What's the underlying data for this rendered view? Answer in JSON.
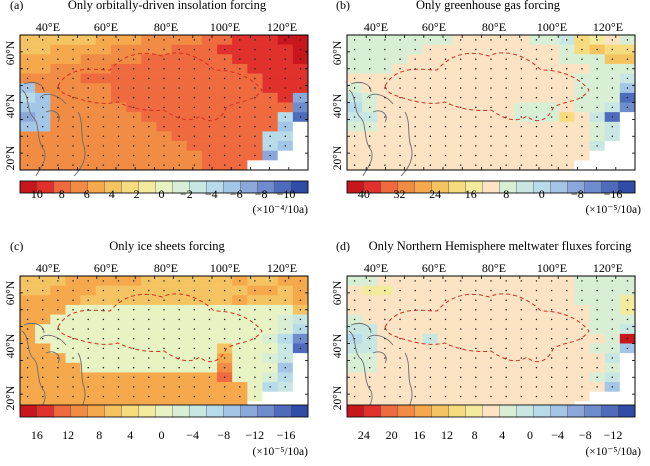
{
  "panels": [
    {
      "label": "(a)",
      "title": "Only orbitally-driven insolation forcing",
      "lon_labels": [
        "40°E",
        "60°E",
        "80°E",
        "100°E",
        "120°E"
      ],
      "lat_labels": [
        "60°N",
        "40°N",
        "20°N"
      ],
      "colorbar_ticks": [
        "10",
        "8",
        "6",
        "4",
        "2",
        "0",
        "−2",
        "−4",
        "−6",
        "−8",
        "−10"
      ],
      "unit": "(×10⁻⁴/10a)",
      "colors": [
        "#c8161d",
        "#e0312c",
        "#ef6a3e",
        "#f08c44",
        "#f6a94c",
        "#f5c462",
        "#f6dc7e",
        "#f4eb9e",
        "#e8f3c3",
        "#d8efd6",
        "#c9e7e2",
        "#b8dbe9",
        "#a3c6e6",
        "#8aa9da",
        "#6f8ccd",
        "#4f6cbc",
        "#2f4da7"
      ],
      "grid": [
        "FFFFFEEEDDDDCCBBBAA",
        "FFEEEEDDDDCCCBBBBBA",
        "EEEEDDDDCCCCCCBBBBA",
        "EEDDDDCCCCCCCCCBBBB",
        "DDDDCCCCCCCCCCCCBBB",
        "MDDDDDCCCCCCCCCCBBB",
        "LMDDDDCCCCCCCCCCCBN",
        "MMDDDDDCCCCCCCCCCCO",
        "NMDDDDDDCCCCCCCCCLP",
        "MMDDDDDDDCCCCCCCCM.",
        "DDDDDDDDDDCCCCCCLL.",
        "DDDDDDDDDDDCCCCCLM.",
        "DDDDDDDDDDDDCCCCN..",
        "DDDDDDDDDDDDCCC...."
      ]
    },
    {
      "label": "(b)",
      "title": "Only greenhouse gas forcing",
      "lon_labels": [
        "40°E",
        "60°E",
        "80°E",
        "100°E",
        "120°E"
      ],
      "lat_labels": [
        "60°N",
        "40°N",
        "20°N"
      ],
      "colorbar_ticks": [
        "40",
        "32",
        "24",
        "16",
        "8",
        "0",
        "−8",
        "−16"
      ],
      "unit": "(×10⁻⁵/10a)",
      "colors": [
        "#c8161d",
        "#e0312c",
        "#ef6a3e",
        "#f08c44",
        "#f6a94c",
        "#f5c462",
        "#f6dc7e",
        "#f4eb9e",
        "#fbe3c4",
        "#d8efd6",
        "#c9e7e2",
        "#b8dbe9",
        "#a3c6e6",
        "#8aa9da",
        "#6f8ccd",
        "#4f6cbc",
        "#2f4da7"
      ],
      "grid": [
        "JJJJJJJIIIIIJJKGHIJ",
        "JJJJJIIIIIIIIIJGFGG",
        "JJJJIIIIIIIIIIJJJFF",
        "JJJIIIIIIIIIIIIIJJJ",
        "IIIIIIIIIIIIIIIJJJK",
        "JIIIIIIIIIIIIIIJJJM",
        "KJIIIIIIIIIIIIIJJJP",
        "LJIIIIIIIIIJJJIJJKO",
        "KKIIIIIIIIIJJJGIKP.",
        "JJIIIIIIIIIIIIIIJK.",
        "IIIIIIIIIIIIIIIIJK.",
        "IIIIIIIIIIIIIIIIK..",
        "IIIIIIIIIIIIIIII...",
        "IIIIIIIIIIIIIII...."
      ]
    },
    {
      "label": "(c)",
      "title": "Only ice sheets forcing",
      "lon_labels": [
        "40°E",
        "60°E",
        "80°E",
        "100°E",
        "120°E"
      ],
      "lat_labels": [
        "60°N",
        "40°N",
        "20°N"
      ],
      "colorbar_ticks": [
        "16",
        "12",
        "8",
        "4",
        "0",
        "−4",
        "−8",
        "−12",
        "−16"
      ],
      "unit": "(×10⁻⁵/10a)",
      "colors": [
        "#c8161d",
        "#e0312c",
        "#ef6a3e",
        "#f08c44",
        "#f6a94c",
        "#f5c462",
        "#f6dc7e",
        "#f4eb9e",
        "#e8f3c3",
        "#d8efd6",
        "#c9e7e2",
        "#b8dbe9",
        "#a3c6e6",
        "#8aa9da",
        "#6f8ccd",
        "#4f6cbc",
        "#2f4da7"
      ],
      "grid": [
        "FFFEEEEEFFFFFFEFFEE",
        "FFEEEFFFFFFFFFFEEFE",
        "EEEEFFFFFFFFFFEFFFE",
        "EEEIIIIIIIIIIIIIIIF",
        "EEIIIIIIIIIIIIIIIJK",
        "EIIIIIIIIIIIIIIIIJL",
        "EIIIIIIIIIIIIIIIJLO",
        "EEIIIIIIIIIIIFIIIKP",
        "EEEIIIIIIIIIIEIIJK.",
        "EEEEIIIIIIIIIDIIIM.",
        "EEEEEEEEEEEEECIIJL.",
        "EEEEEEEEEEEEEEEILK.",
        "EEEEEEEEEEEEEEEI...",
        "EEEEEEEEEEEEEEE...."
      ]
    },
    {
      "label": "(d)",
      "title": "Only Northern Hemisphere meltwater fluxes forcing",
      "lon_labels": [
        "40°E",
        "60°E",
        "80°E",
        "100°E",
        "120°E"
      ],
      "lat_labels": [
        "60°N",
        "40°N",
        "20°N"
      ],
      "colorbar_ticks": [
        "24",
        "20",
        "16",
        "12",
        "8",
        "4",
        "0",
        "−4",
        "−8",
        "−12"
      ],
      "unit": "(×10⁻⁵/10a)",
      "colors": [
        "#c8161d",
        "#e0312c",
        "#ef6a3e",
        "#f08c44",
        "#f6a94c",
        "#f5c462",
        "#f6dc7e",
        "#f4eb9e",
        "#fbe3c4",
        "#d8efd6",
        "#c9e7e2",
        "#b8dbe9",
        "#a3c6e6",
        "#8aa9da",
        "#6f8ccd",
        "#4f6cbc",
        "#2f4da7"
      ],
      "grid": [
        "JJIIIIIIIIIIIIIJJJJ",
        "IHHIIIIIIIIIIIIJJJJ",
        "IIIIIIIIIIIIIIIJJJH",
        "IIIIIIIIIIIIIIIIJJH",
        "JIIIIIIIIIIIIIIIJJJ",
        "KKIIIIIIIIIIIIIIJJK",
        "LKIIIKIIIIIIIIIIIJA",
        "KKIIIIIIIIIIIIIIJJM",
        "JJIIIIIIIIIIIIIIIK.",
        "JJIIIIIIIIIIIIIIIJ.",
        "IIIIIIIIIIIIIIIIJK.",
        "IIIIIIIIIIIIIIIIIM.",
        "IIIIIIIIIIIIIIII...",
        "IIIIIIIIIIIIIII...."
      ]
    }
  ]
}
